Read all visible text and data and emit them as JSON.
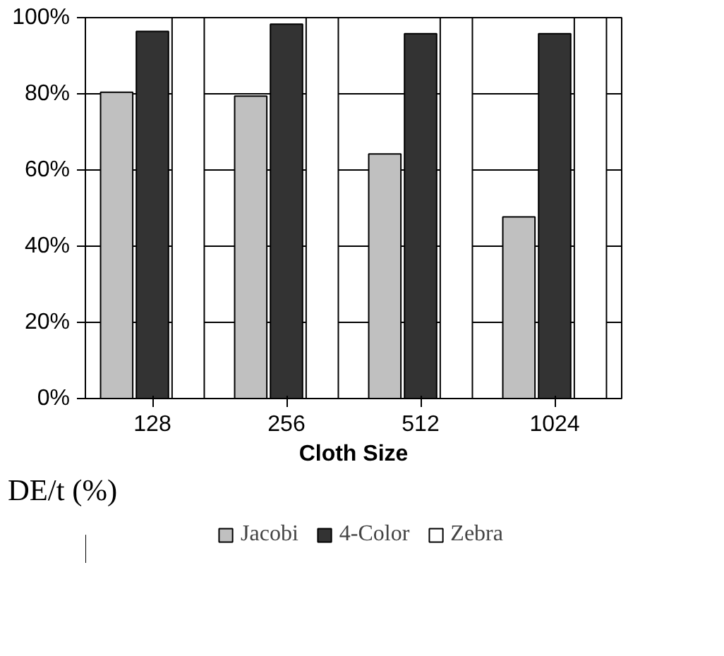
{
  "chart_data": {
    "type": "bar",
    "xlabel": "Cloth Size",
    "ylabel": "DE/t (%)",
    "categories": [
      "128",
      "256",
      "512",
      "1024"
    ],
    "series": [
      {
        "name": "Jacobi",
        "color": "#c0c0c0",
        "values": [
          80.4,
          79.4,
          64.2,
          47.7
        ]
      },
      {
        "name": "4-Color",
        "color": "#333333",
        "values": [
          96.4,
          98.3,
          95.8,
          95.8
        ]
      },
      {
        "name": "Zebra",
        "color": "#ffffff",
        "values": [
          100,
          100,
          100,
          100
        ]
      }
    ],
    "ylim": [
      0,
      100
    ],
    "yticks": [
      {
        "value": 0,
        "label": "0%"
      },
      {
        "value": 20,
        "label": "20%"
      },
      {
        "value": 40,
        "label": "40%"
      },
      {
        "value": 60,
        "label": "60%"
      },
      {
        "value": 80,
        "label": "80%"
      },
      {
        "value": 100,
        "label": "100%"
      }
    ],
    "grid": "y",
    "legend": "bottom"
  }
}
